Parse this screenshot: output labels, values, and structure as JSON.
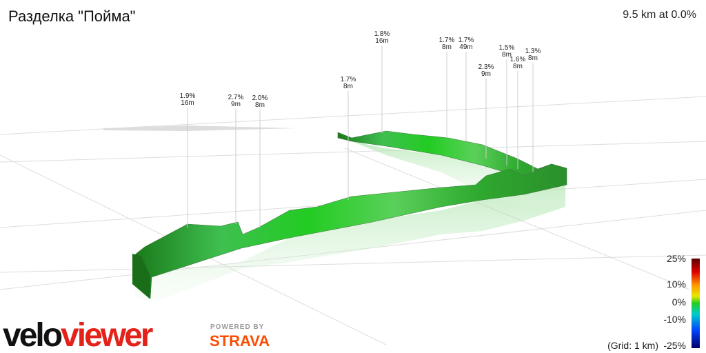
{
  "header": {
    "title": "Разделка \"Пойма\"",
    "summary": "9.5 km at 0.0%"
  },
  "annotations": [
    {
      "grade": "1.9%",
      "height": "16m"
    },
    {
      "grade": "2.7%",
      "height": "9m"
    },
    {
      "grade": "2.0%",
      "height": "8m"
    },
    {
      "grade": "1.7%",
      "height": "8m"
    },
    {
      "grade": "1.8%",
      "height": "16m"
    },
    {
      "grade": "1.7%",
      "height": "8m"
    },
    {
      "grade": "1.7%",
      "height": "49m"
    },
    {
      "grade": "2.3%",
      "height": "9m"
    },
    {
      "grade": "1.5%",
      "height": "8m"
    },
    {
      "grade": "1.6%",
      "height": "8m"
    },
    {
      "grade": "1.3%",
      "height": "8m"
    }
  ],
  "legend": {
    "labels": [
      "25%",
      "10%",
      "0%",
      "-10%",
      "-25%"
    ],
    "grid": "(Grid: 1 km)"
  },
  "branding": {
    "logo_part1": "velo",
    "logo_part2": "viewer",
    "powered": "POWERED BY",
    "strava": "STRAVA"
  }
}
